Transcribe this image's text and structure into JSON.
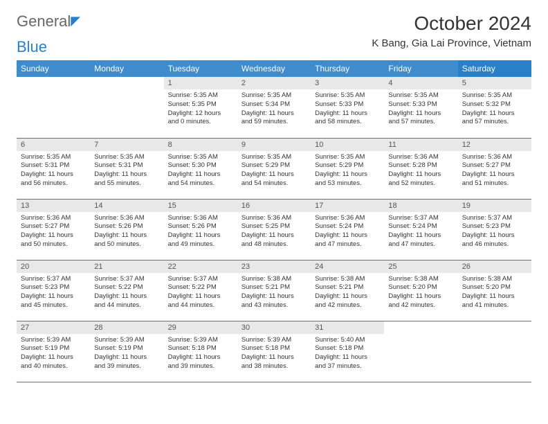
{
  "logo": {
    "part1": "General",
    "part2": "Blue"
  },
  "title": "October 2024",
  "location": "K Bang, Gia Lai Province, Vietnam",
  "weekdays": [
    "Sunday",
    "Monday",
    "Tuesday",
    "Wednesday",
    "Thursday",
    "Friday",
    "Saturday"
  ],
  "colors": {
    "header_bg": "#3e8bce",
    "header_bg_last": "#2a7fc9",
    "daynum_bg": "#e8e8e8",
    "row_border": "#2a7fc9",
    "text": "#333333"
  },
  "weeks": [
    [
      null,
      null,
      {
        "n": "1",
        "sr": "5:35 AM",
        "ss": "5:35 PM",
        "dl": "12 hours and 0 minutes."
      },
      {
        "n": "2",
        "sr": "5:35 AM",
        "ss": "5:34 PM",
        "dl": "11 hours and 59 minutes."
      },
      {
        "n": "3",
        "sr": "5:35 AM",
        "ss": "5:33 PM",
        "dl": "11 hours and 58 minutes."
      },
      {
        "n": "4",
        "sr": "5:35 AM",
        "ss": "5:33 PM",
        "dl": "11 hours and 57 minutes."
      },
      {
        "n": "5",
        "sr": "5:35 AM",
        "ss": "5:32 PM",
        "dl": "11 hours and 57 minutes."
      }
    ],
    [
      {
        "n": "6",
        "sr": "5:35 AM",
        "ss": "5:31 PM",
        "dl": "11 hours and 56 minutes."
      },
      {
        "n": "7",
        "sr": "5:35 AM",
        "ss": "5:31 PM",
        "dl": "11 hours and 55 minutes."
      },
      {
        "n": "8",
        "sr": "5:35 AM",
        "ss": "5:30 PM",
        "dl": "11 hours and 54 minutes."
      },
      {
        "n": "9",
        "sr": "5:35 AM",
        "ss": "5:29 PM",
        "dl": "11 hours and 54 minutes."
      },
      {
        "n": "10",
        "sr": "5:35 AM",
        "ss": "5:29 PM",
        "dl": "11 hours and 53 minutes."
      },
      {
        "n": "11",
        "sr": "5:36 AM",
        "ss": "5:28 PM",
        "dl": "11 hours and 52 minutes."
      },
      {
        "n": "12",
        "sr": "5:36 AM",
        "ss": "5:27 PM",
        "dl": "11 hours and 51 minutes."
      }
    ],
    [
      {
        "n": "13",
        "sr": "5:36 AM",
        "ss": "5:27 PM",
        "dl": "11 hours and 50 minutes."
      },
      {
        "n": "14",
        "sr": "5:36 AM",
        "ss": "5:26 PM",
        "dl": "11 hours and 50 minutes."
      },
      {
        "n": "15",
        "sr": "5:36 AM",
        "ss": "5:26 PM",
        "dl": "11 hours and 49 minutes."
      },
      {
        "n": "16",
        "sr": "5:36 AM",
        "ss": "5:25 PM",
        "dl": "11 hours and 48 minutes."
      },
      {
        "n": "17",
        "sr": "5:36 AM",
        "ss": "5:24 PM",
        "dl": "11 hours and 47 minutes."
      },
      {
        "n": "18",
        "sr": "5:37 AM",
        "ss": "5:24 PM",
        "dl": "11 hours and 47 minutes."
      },
      {
        "n": "19",
        "sr": "5:37 AM",
        "ss": "5:23 PM",
        "dl": "11 hours and 46 minutes."
      }
    ],
    [
      {
        "n": "20",
        "sr": "5:37 AM",
        "ss": "5:23 PM",
        "dl": "11 hours and 45 minutes."
      },
      {
        "n": "21",
        "sr": "5:37 AM",
        "ss": "5:22 PM",
        "dl": "11 hours and 44 minutes."
      },
      {
        "n": "22",
        "sr": "5:37 AM",
        "ss": "5:22 PM",
        "dl": "11 hours and 44 minutes."
      },
      {
        "n": "23",
        "sr": "5:38 AM",
        "ss": "5:21 PM",
        "dl": "11 hours and 43 minutes."
      },
      {
        "n": "24",
        "sr": "5:38 AM",
        "ss": "5:21 PM",
        "dl": "11 hours and 42 minutes."
      },
      {
        "n": "25",
        "sr": "5:38 AM",
        "ss": "5:20 PM",
        "dl": "11 hours and 42 minutes."
      },
      {
        "n": "26",
        "sr": "5:38 AM",
        "ss": "5:20 PM",
        "dl": "11 hours and 41 minutes."
      }
    ],
    [
      {
        "n": "27",
        "sr": "5:39 AM",
        "ss": "5:19 PM",
        "dl": "11 hours and 40 minutes."
      },
      {
        "n": "28",
        "sr": "5:39 AM",
        "ss": "5:19 PM",
        "dl": "11 hours and 39 minutes."
      },
      {
        "n": "29",
        "sr": "5:39 AM",
        "ss": "5:18 PM",
        "dl": "11 hours and 39 minutes."
      },
      {
        "n": "30",
        "sr": "5:39 AM",
        "ss": "5:18 PM",
        "dl": "11 hours and 38 minutes."
      },
      {
        "n": "31",
        "sr": "5:40 AM",
        "ss": "5:18 PM",
        "dl": "11 hours and 37 minutes."
      },
      null,
      null
    ]
  ],
  "labels": {
    "sunrise": "Sunrise: ",
    "sunset": "Sunset: ",
    "daylight": "Daylight: "
  }
}
